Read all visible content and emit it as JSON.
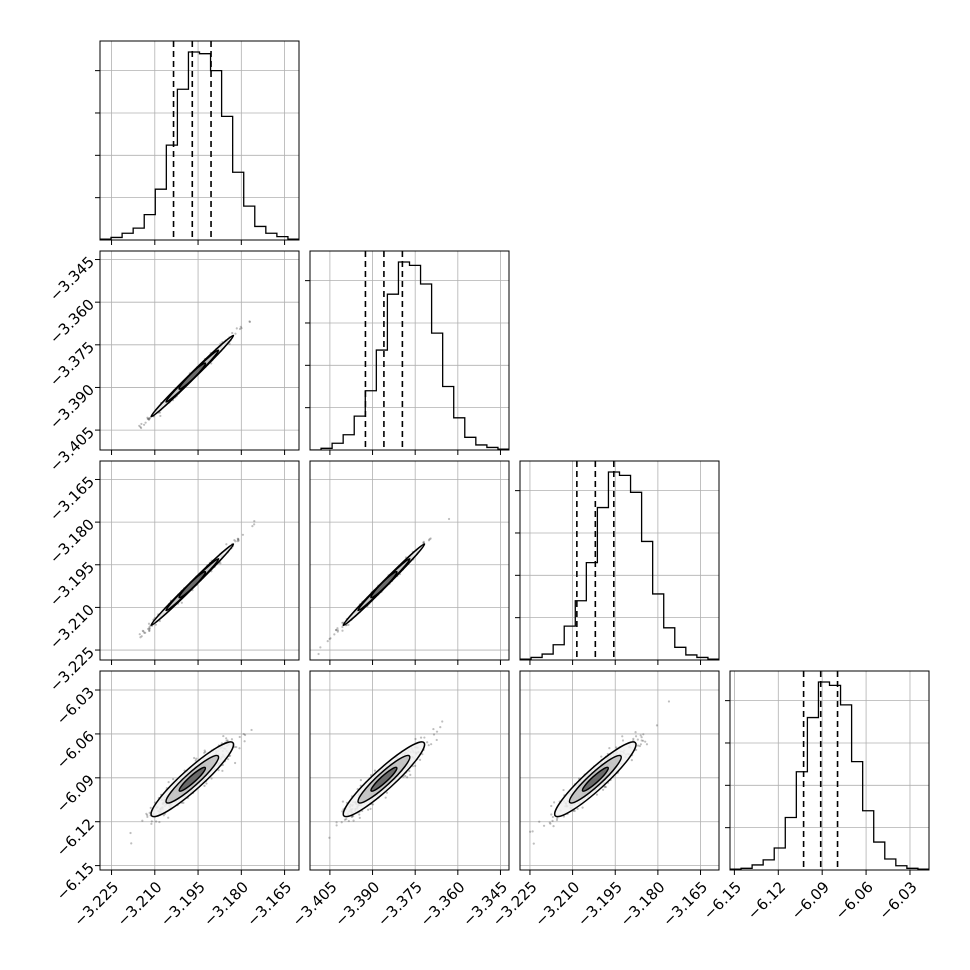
{
  "chart_data": {
    "type": "corner",
    "n_params": 4,
    "quantiles": [
      0.16,
      0.5,
      0.84
    ],
    "colors": {
      "line": "#000000",
      "grid": "#b0b0b0",
      "frame": "#000000",
      "scatter": "#444444"
    },
    "grid": true,
    "params": [
      {
        "range": [
          -3.229,
          -3.16
        ],
        "ticks": [
          "−3.225",
          "−3.210",
          "−3.195",
          "−3.180",
          "−3.165"
        ],
        "tick_values": [
          -3.225,
          -3.21,
          -3.195,
          -3.18,
          -3.165
        ],
        "quantile_values": [
          -3.2035,
          -3.197,
          -3.1905
        ],
        "hist_counts": [
          1,
          3,
          8,
          14,
          30,
          60,
          112,
          178,
          222,
          220,
          200,
          146,
          80,
          40,
          16,
          8,
          4,
          1
        ],
        "hist_yticks": [
          50,
          100,
          150,
          200
        ],
        "hist_ylim": [
          0,
          235
        ]
      },
      {
        "range": [
          -3.412,
          -3.342
        ],
        "ticks": [
          "−3.405",
          "−3.390",
          "−3.375",
          "−3.360",
          "−3.345"
        ],
        "tick_values": [
          -3.405,
          -3.39,
          -3.375,
          -3.36,
          -3.345
        ],
        "quantile_values": [
          -3.3925,
          -3.386,
          -3.3795
        ],
        "hist_counts": [
          0,
          2,
          8,
          18,
          40,
          70,
          118,
          184,
          222,
          218,
          196,
          138,
          75,
          38,
          15,
          6,
          3,
          1
        ],
        "hist_yticks": [
          50,
          100,
          150,
          200
        ],
        "hist_ylim": [
          0,
          235
        ]
      },
      {
        "range": [
          -3.2285,
          -3.1585
        ],
        "ticks": [
          "−3.225",
          "−3.210",
          "−3.195",
          "−3.180",
          "−3.165"
        ],
        "tick_values": [
          -3.225,
          -3.21,
          -3.195,
          -3.18,
          -3.165
        ],
        "quantile_values": [
          -3.2085,
          -3.202,
          -3.1955
        ],
        "hist_counts": [
          1,
          3,
          7,
          18,
          40,
          70,
          115,
          180,
          222,
          218,
          198,
          140,
          78,
          38,
          15,
          6,
          3,
          1
        ],
        "hist_yticks": [
          50,
          100,
          150,
          200
        ],
        "hist_ylim": [
          0,
          235
        ]
      },
      {
        "range": [
          -6.153,
          -6.017
        ],
        "ticks": [
          "−6.15",
          "−6.12",
          "−6.09",
          "−6.06",
          "−6.03"
        ],
        "tick_values": [
          -6.15,
          -6.12,
          -6.09,
          -6.06,
          -6.03
        ],
        "quantile_values": [
          -6.1027,
          -6.091,
          -6.0795
        ],
        "hist_counts": [
          1,
          2,
          6,
          12,
          26,
          62,
          116,
          180,
          222,
          218,
          195,
          128,
          70,
          33,
          13,
          5,
          2,
          1
        ],
        "hist_yticks": [
          50,
          100,
          150,
          200
        ],
        "hist_ylim": [
          0,
          235
        ]
      }
    ],
    "correlations": {
      "1-0": 0.995,
      "2-0": 0.995,
      "2-1": 0.995,
      "3-0": 0.93,
      "3-1": 0.93,
      "3-2": 0.93
    },
    "n_samples": 2500
  }
}
